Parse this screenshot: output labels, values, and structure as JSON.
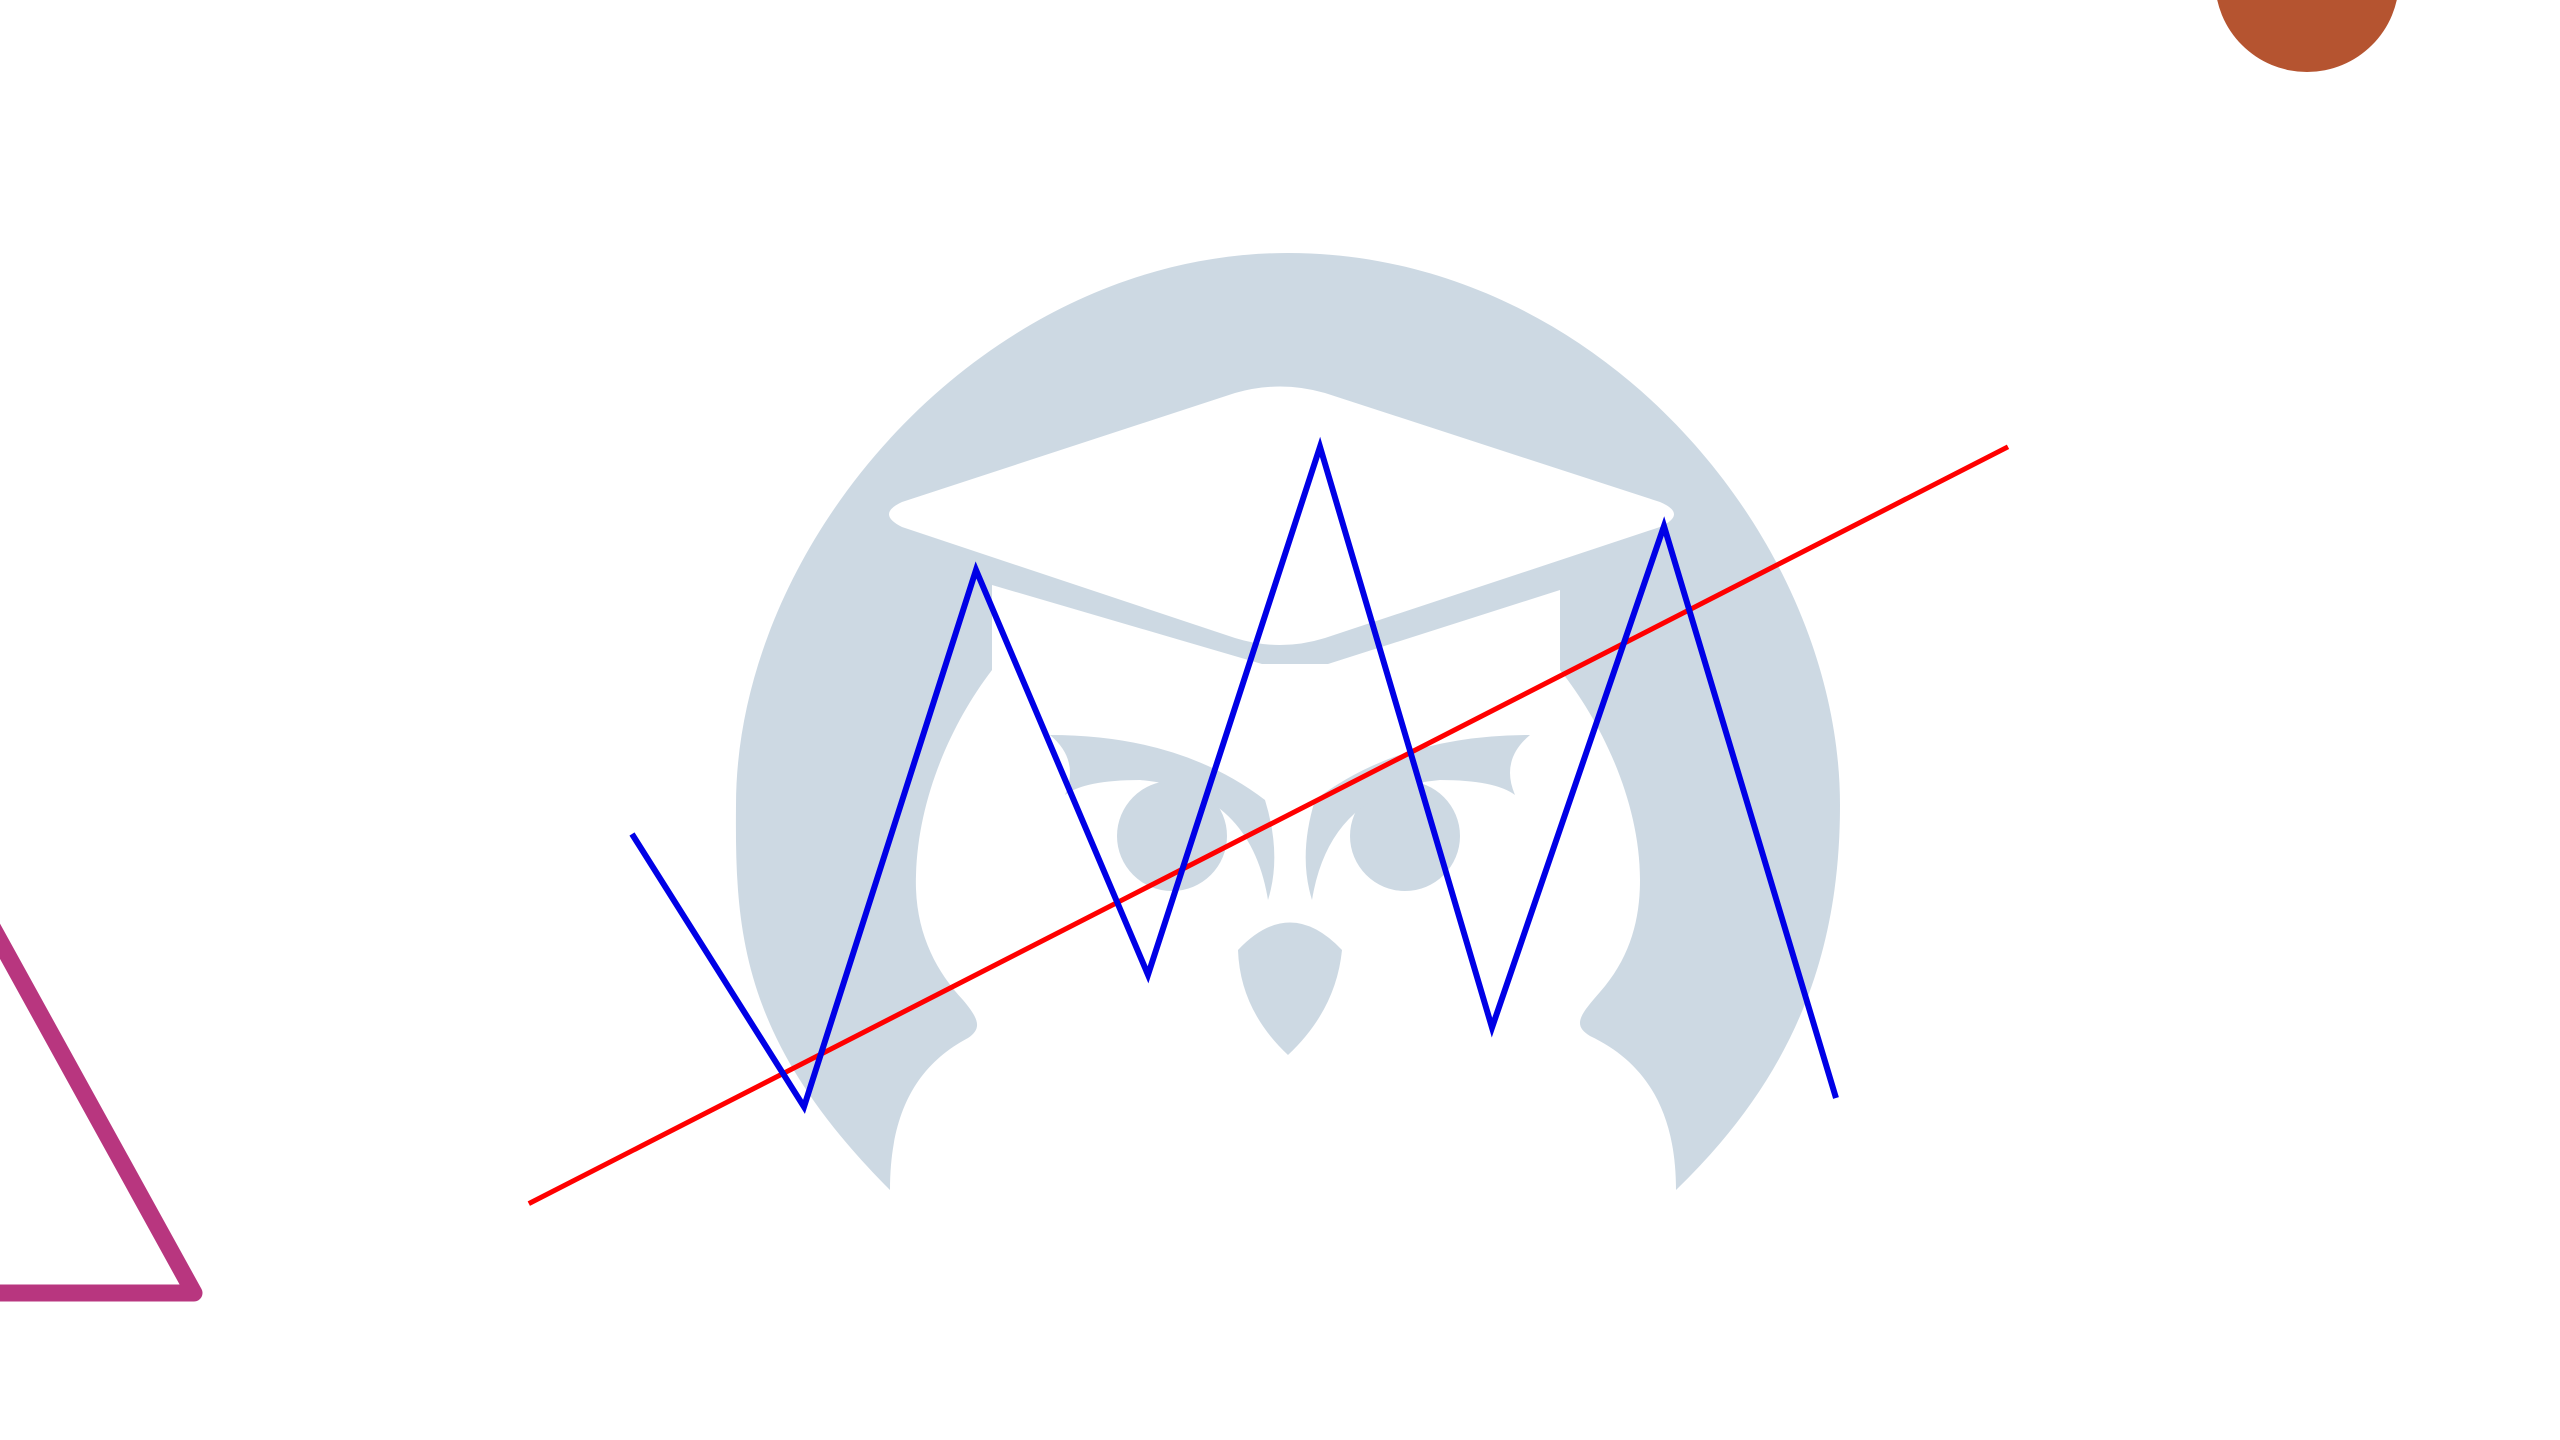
{
  "colors": {
    "background": "#ffffff",
    "watermark": "#cdd9e3",
    "watermark_cutout": "#ffffff",
    "zigzag_line": "#0000e6",
    "trend_line": "#ff0000",
    "triangle_outline": "#b8367f",
    "corner_circle": "#b55430"
  },
  "icons": {
    "watermark": "owl-graduation-cap-icon",
    "corner_shape": "circle-icon",
    "left_shape": "triangle-outline-icon"
  },
  "diagram": {
    "type": "line",
    "series": [
      {
        "role": "zigzag",
        "color": "#0000e6",
        "points": [
          [
            1,
            4.5
          ],
          [
            2,
            1.4
          ],
          [
            3,
            7.5
          ],
          [
            4,
            2.9
          ],
          [
            5,
            8.9
          ],
          [
            6,
            2.3
          ],
          [
            7,
            8.0
          ],
          [
            8,
            1.5
          ]
        ]
      },
      {
        "role": "trend",
        "color": "#ff0000",
        "points": [
          [
            0.4,
            0.3
          ],
          [
            9.0,
            8.9
          ]
        ]
      }
    ]
  }
}
